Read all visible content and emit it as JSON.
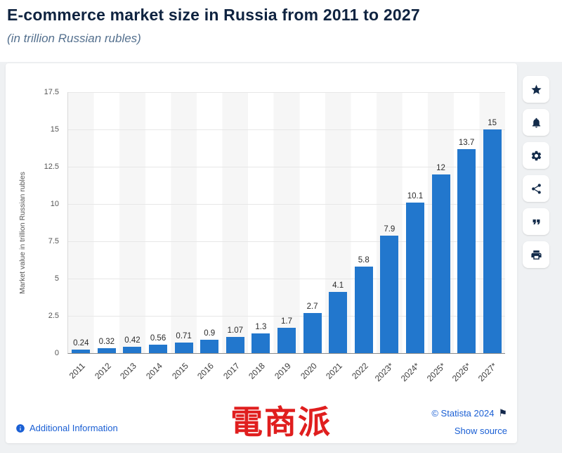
{
  "header": {
    "title": "E-commerce market size in Russia from 2011 to 2027",
    "subtitle": "(in trillion Russian rubles)"
  },
  "chart_data": {
    "type": "bar",
    "title": "E-commerce market size in Russia from 2011 to 2027",
    "categories": [
      "2011",
      "2012",
      "2013",
      "2014",
      "2015",
      "2016",
      "2017",
      "2018",
      "2019",
      "2020",
      "2021",
      "2022",
      "2023*",
      "2024*",
      "2025*",
      "2026*",
      "2027*"
    ],
    "values": [
      0.24,
      0.32,
      0.42,
      0.56,
      0.71,
      0.9,
      1.07,
      1.3,
      1.7,
      2.7,
      4.1,
      5.8,
      7.9,
      10.1,
      12,
      13.7,
      15
    ],
    "xlabel": "",
    "ylabel": "Market value in trillion Russian rubles",
    "yticks": [
      0,
      2.5,
      5,
      7.5,
      10,
      12.5,
      15,
      17.5
    ],
    "ylim": [
      0,
      17.5
    ],
    "grid": true,
    "legend": false,
    "bar_color": "#2277cd"
  },
  "toolbar": {
    "icons": [
      "star",
      "bell",
      "gear",
      "share",
      "quote",
      "print"
    ]
  },
  "footer": {
    "additional_information": "Additional Information",
    "copyright": "© Statista 2024",
    "show_source": "Show source"
  },
  "watermark": "電商派",
  "colors": {
    "bar": "#2277cd",
    "link": "#1a5fd4",
    "title": "#0f2340",
    "watermark": "#e01e1e"
  }
}
